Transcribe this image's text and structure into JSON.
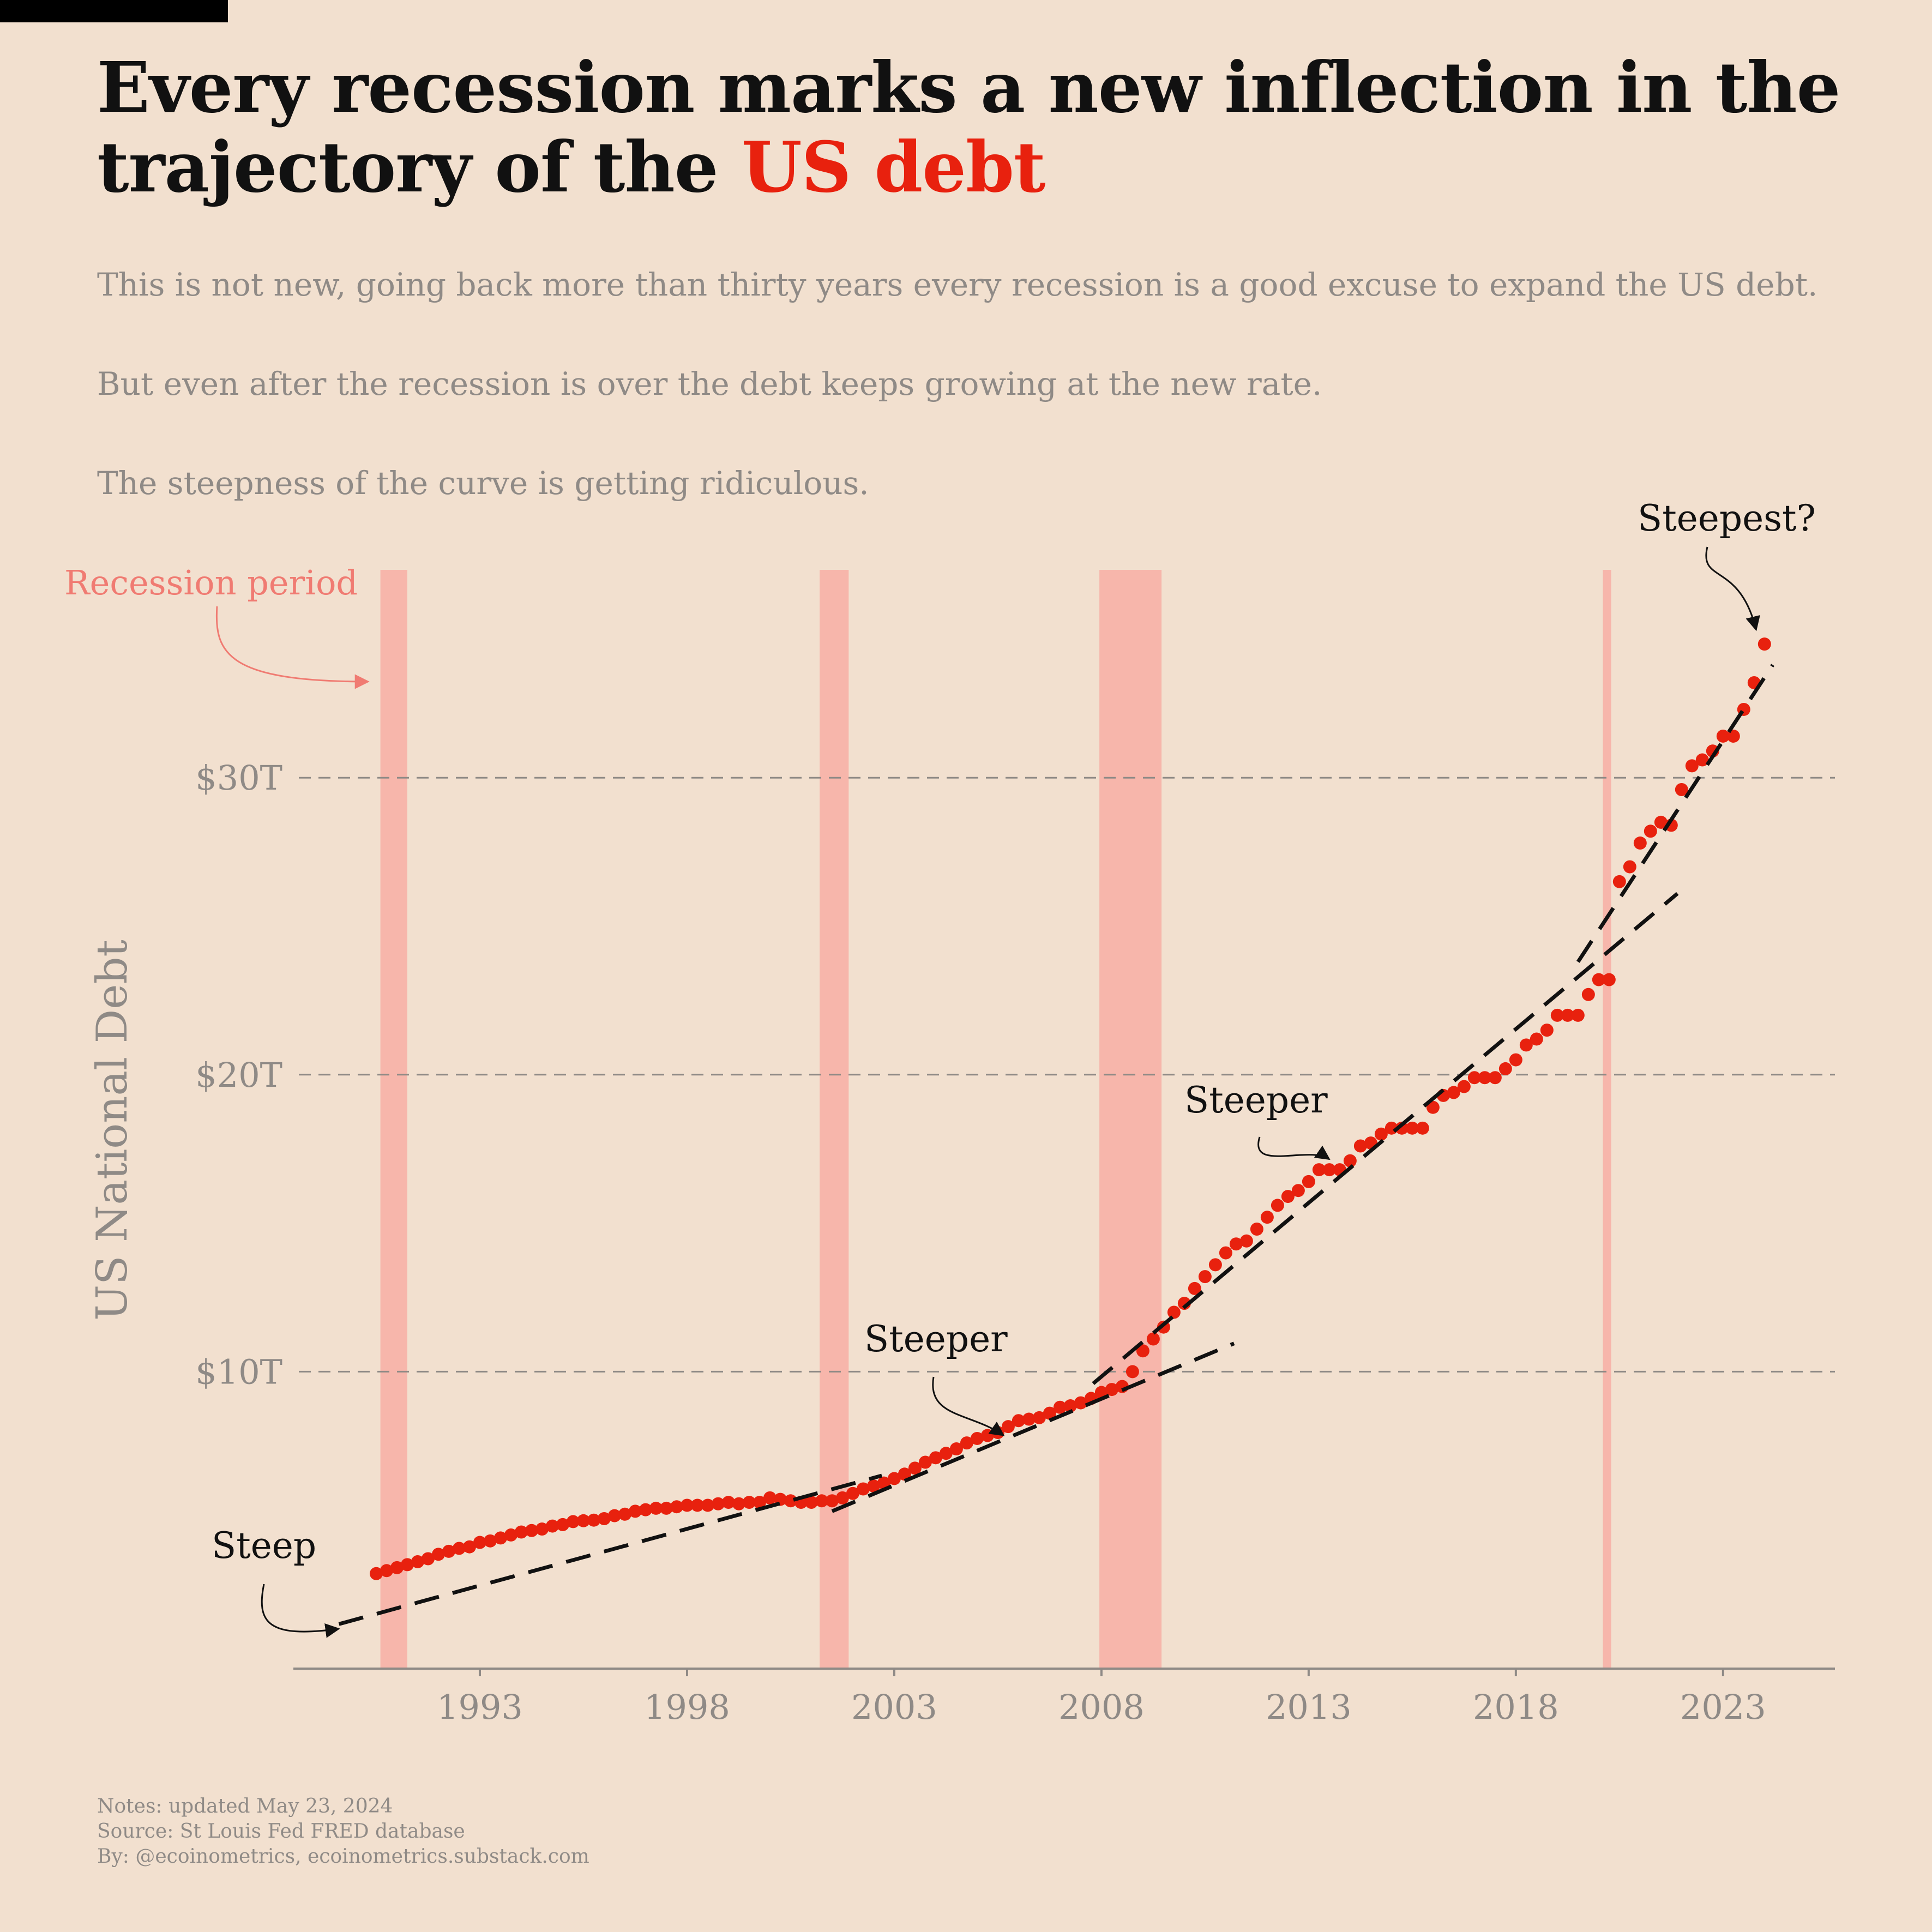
{
  "title": {
    "prefix": "Every recession marks a new inflection in the trajectory of the ",
    "highlight": "US debt",
    "highlight_color": "#e8210e"
  },
  "subtitle": {
    "line1": "This is not new, going back more than thirty years every recession is a good excuse to expand the US debt.",
    "line2": "But even after the recession is over the debt keeps growing at the new rate.",
    "line3": "The steepness of the curve is getting ridiculous."
  },
  "footer": {
    "notes": "Notes: updated May 23, 2024",
    "source": "Source: St Louis Fed FRED database",
    "by": "By: @ecoinometrics, ecoinometrics.substack.com"
  },
  "colors": {
    "background": "#f2e0cf",
    "points": "#e8210e",
    "recession": "#f7b6ab",
    "recession_label": "#f07b72",
    "gridline": "#8f8a86"
  },
  "chart_data": {
    "type": "scatter",
    "ylabel": "US National Debt",
    "xlabel": "",
    "xlim": [
      1988.5,
      2025.7
    ],
    "ylim": [
      0,
      37
    ],
    "xticks": [
      1993,
      1998,
      2003,
      2008,
      2013,
      2018,
      2023
    ],
    "yticks": [
      10,
      20,
      30
    ],
    "ytick_labels": [
      "$10T",
      "$20T",
      "$30T"
    ],
    "grid": "horizontal dashed",
    "recession_label": "Recession period",
    "recessions": [
      {
        "start": 1990.6,
        "end": 1991.25
      },
      {
        "start": 2001.2,
        "end": 2001.9
      },
      {
        "start": 2007.95,
        "end": 2009.45
      },
      {
        "start": 2020.1,
        "end": 2020.3
      }
    ],
    "series": [
      {
        "name": "US National Debt ($T, quarterly)",
        "x": [
          1990.5,
          1990.75,
          1991.0,
          1991.25,
          1991.5,
          1991.75,
          1992.0,
          1992.25,
          1992.5,
          1992.75,
          1993.0,
          1993.25,
          1993.5,
          1993.75,
          1994.0,
          1994.25,
          1994.5,
          1994.75,
          1995.0,
          1995.25,
          1995.5,
          1995.75,
          1996.0,
          1996.25,
          1996.5,
          1996.75,
          1997.0,
          1997.25,
          1997.5,
          1997.75,
          1998.0,
          1998.25,
          1998.5,
          1998.75,
          1999.0,
          1999.25,
          1999.5,
          1999.75,
          2000.0,
          2000.25,
          2000.5,
          2000.75,
          2001.0,
          2001.25,
          2001.5,
          2001.75,
          2002.0,
          2002.25,
          2002.5,
          2002.75,
          2003.0,
          2003.25,
          2003.5,
          2003.75,
          2004.0,
          2004.25,
          2004.5,
          2004.75,
          2005.0,
          2005.25,
          2005.5,
          2005.75,
          2006.0,
          2006.25,
          2006.5,
          2006.75,
          2007.0,
          2007.25,
          2007.5,
          2007.75,
          2008.0,
          2008.25,
          2008.5,
          2008.75,
          2009.0,
          2009.25,
          2009.5,
          2009.75,
          2010.0,
          2010.25,
          2010.5,
          2010.75,
          2011.0,
          2011.25,
          2011.5,
          2011.75,
          2012.0,
          2012.25,
          2012.5,
          2012.75,
          2013.0,
          2013.25,
          2013.5,
          2013.75,
          2014.0,
          2014.25,
          2014.5,
          2014.75,
          2015.0,
          2015.25,
          2015.5,
          2015.75,
          2016.0,
          2016.25,
          2016.5,
          2016.75,
          2017.0,
          2017.25,
          2017.5,
          2017.75,
          2018.0,
          2018.25,
          2018.5,
          2018.75,
          2019.0,
          2019.25,
          2019.5,
          2019.75,
          2020.0,
          2020.25,
          2020.5,
          2020.75,
          2021.0,
          2021.25,
          2021.5,
          2021.75,
          2022.0,
          2022.25,
          2022.5,
          2022.75,
          2023.0,
          2023.25,
          2023.5,
          2023.75,
          2024.0
        ],
        "y": [
          3.2,
          3.3,
          3.4,
          3.5,
          3.6,
          3.7,
          3.85,
          3.95,
          4.05,
          4.1,
          4.25,
          4.3,
          4.4,
          4.5,
          4.6,
          4.65,
          4.7,
          4.8,
          4.85,
          4.95,
          4.98,
          5.0,
          5.05,
          5.15,
          5.2,
          5.3,
          5.35,
          5.4,
          5.4,
          5.45,
          5.5,
          5.5,
          5.5,
          5.55,
          5.6,
          5.55,
          5.6,
          5.6,
          5.75,
          5.7,
          5.65,
          5.6,
          5.6,
          5.65,
          5.65,
          5.75,
          5.9,
          6.05,
          6.15,
          6.25,
          6.4,
          6.55,
          6.75,
          6.95,
          7.1,
          7.25,
          7.4,
          7.6,
          7.75,
          7.85,
          7.95,
          8.15,
          8.35,
          8.4,
          8.45,
          8.6,
          8.8,
          8.85,
          8.95,
          9.1,
          9.3,
          9.4,
          9.5,
          10.0,
          10.7,
          11.1,
          11.5,
          12.0,
          12.3,
          12.8,
          13.2,
          13.6,
          14.0,
          14.3,
          14.4,
          14.8,
          15.2,
          15.6,
          15.9,
          16.1,
          16.4,
          16.8,
          16.8,
          16.8,
          17.1,
          17.6,
          17.7,
          18.0,
          18.2,
          18.2,
          18.2,
          18.2,
          18.9,
          19.3,
          19.4,
          19.6,
          19.9,
          19.9,
          19.9,
          20.2,
          20.5,
          21.0,
          21.2,
          21.5,
          22.0,
          22.0,
          22.0,
          22.7,
          23.2,
          23.2,
          26.5,
          27.0,
          27.8,
          28.2,
          28.5,
          28.4,
          29.6,
          30.4,
          30.6,
          30.9,
          31.4,
          31.4,
          32.3,
          33.2,
          34.5
        ]
      }
    ],
    "trend_lines": [
      {
        "from": [
          1989.6,
          1.5
        ],
        "to": [
          2002.7,
          6.5
        ]
      },
      {
        "from": [
          2001.5,
          5.3
        ],
        "to": [
          2011.2,
          10.95
        ]
      },
      {
        "from": [
          2007.8,
          9.6
        ],
        "to": [
          2021.9,
          26.1
        ]
      },
      {
        "from": [
          2019.5,
          23.8
        ],
        "to": [
          2024.2,
          33.8
        ]
      }
    ],
    "annotations": [
      {
        "text": "Steep",
        "points_to": [
          1989.75,
          1.45
        ]
      },
      {
        "text": "Steeper",
        "points_to": [
          2005.7,
          7.6
        ]
      },
      {
        "text": "Steeper",
        "points_to": [
          2013.6,
          16.9
        ]
      },
      {
        "text": "Steepest?",
        "points_to": [
          2023.85,
          34.8
        ]
      }
    ]
  }
}
